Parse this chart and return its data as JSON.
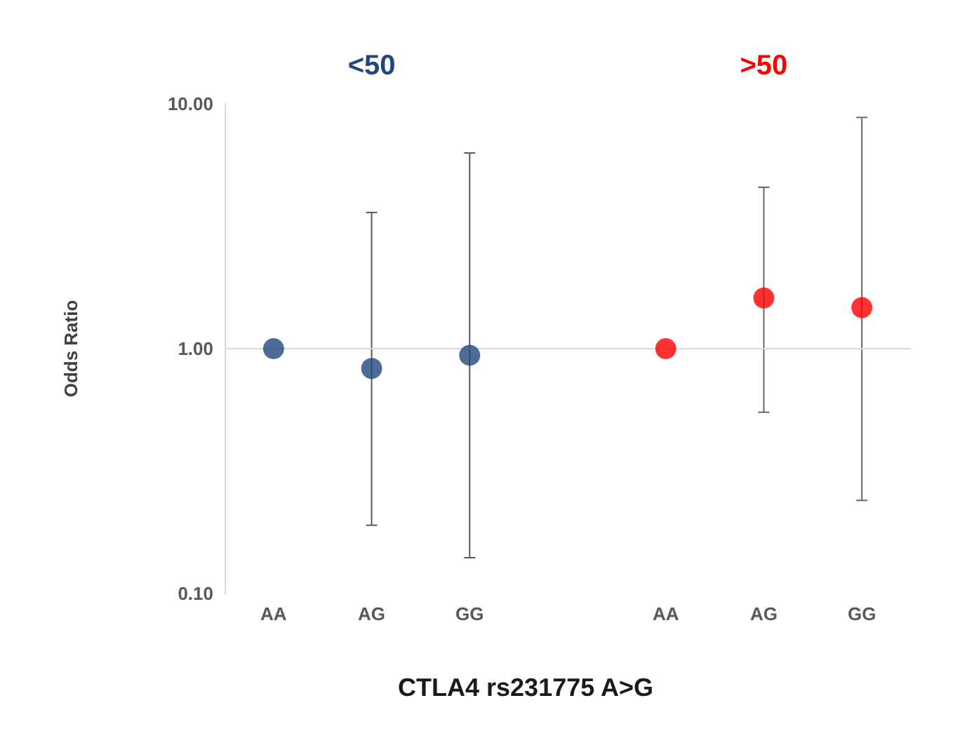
{
  "chart_data": {
    "type": "scatter",
    "xlabel": "CTLA4 rs231775 A>G",
    "ylabel": "Odds Ratio",
    "categories": [
      "AA",
      "AG",
      "GG",
      null,
      "AA",
      "AG",
      "GG"
    ],
    "series": [
      {
        "name": "<50",
        "color": "#1f497d",
        "values": [
          1.0,
          0.83,
          0.94,
          null,
          null,
          null,
          null
        ],
        "errors": [
          null,
          [
            0.19,
            3.6
          ],
          [
            0.14,
            6.3
          ],
          null,
          null,
          null,
          null
        ]
      },
      {
        "name": ">50",
        "color": "#ff0000",
        "values": [
          null,
          null,
          null,
          null,
          1.0,
          1.61,
          1.47
        ],
        "errors": [
          null,
          null,
          null,
          null,
          null,
          [
            0.55,
            4.56
          ],
          [
            0.24,
            8.8
          ]
        ]
      }
    ],
    "log": "y",
    "ylim": [
      0.1,
      10
    ],
    "yticks": [
      {
        "value": 0.1,
        "label": "0.10"
      },
      {
        "value": 1,
        "label": "1.00"
      },
      {
        "value": 10,
        "label": "10.00"
      }
    ],
    "ref_lines": [
      {
        "axis": "y",
        "value": 1,
        "color": "#d9d9d9"
      }
    ],
    "marker": "circle",
    "grid": false,
    "legend": false
  }
}
